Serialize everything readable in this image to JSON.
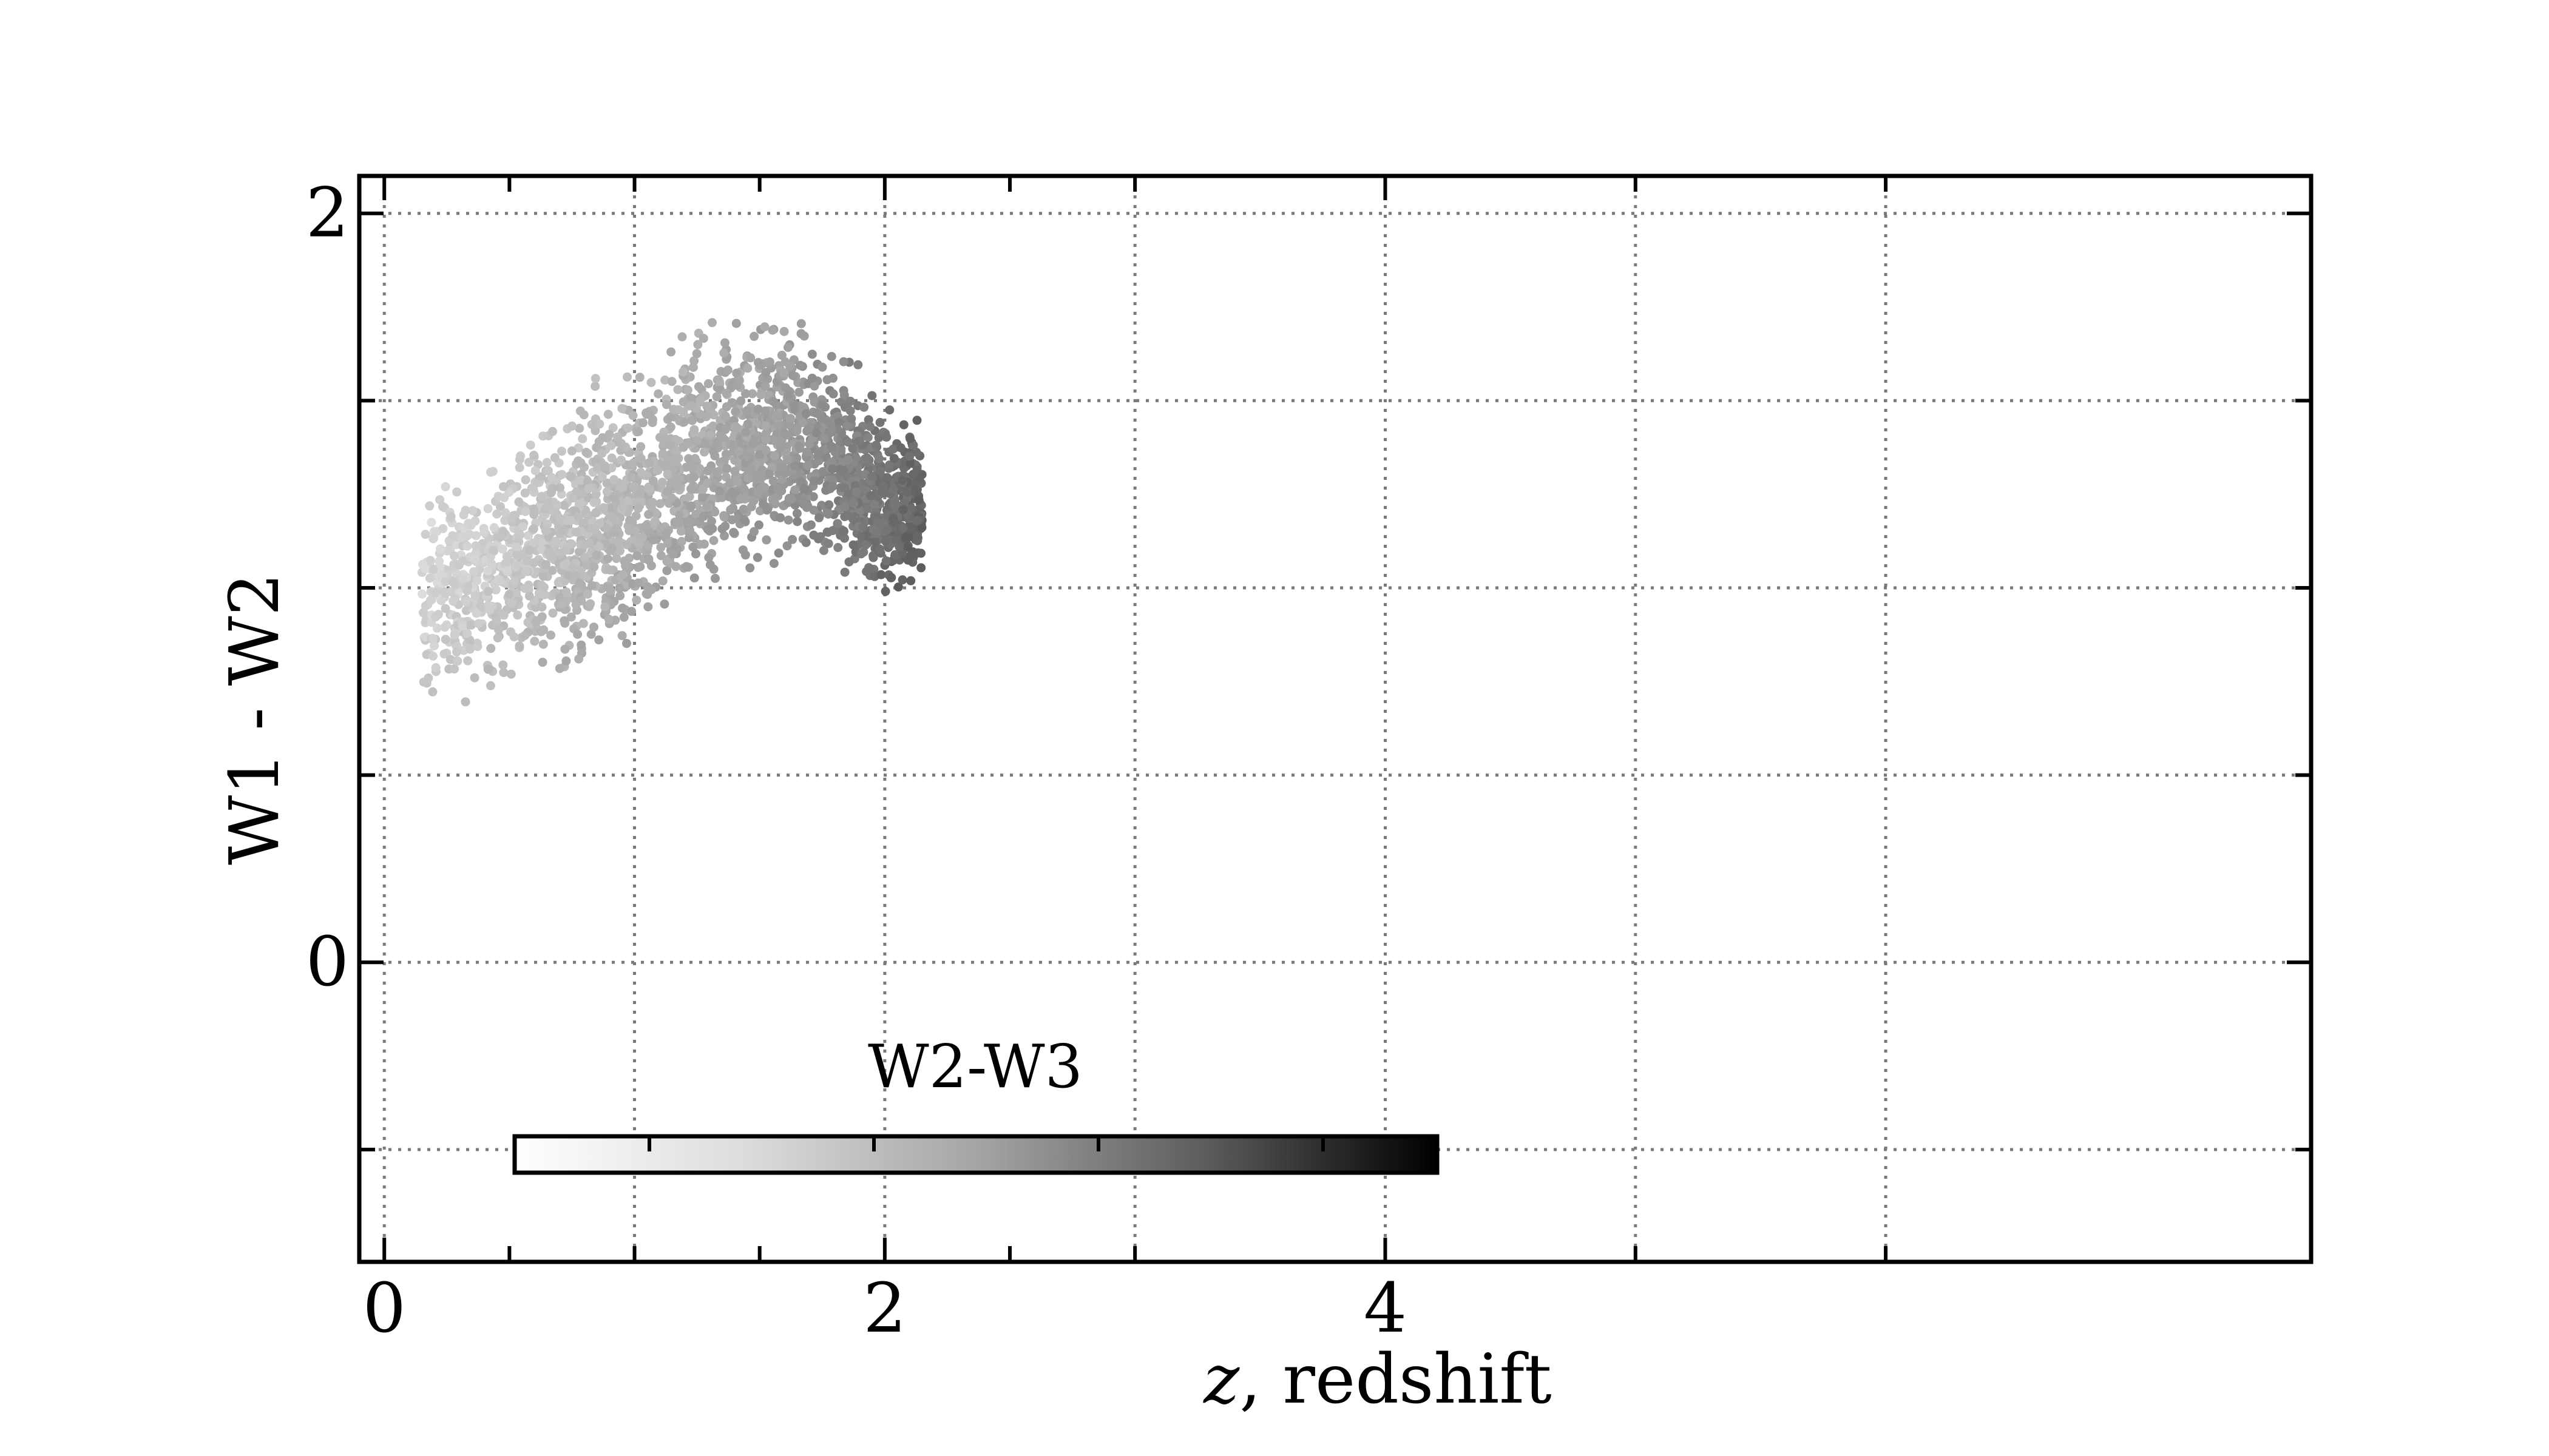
{
  "chart_data": {
    "type": "scatter",
    "title": "",
    "xlabel_italic": "z",
    "xlabel_rest": ", redshift",
    "ylabel": "W1 - W2",
    "xlim": [
      -0.1,
      7.7
    ],
    "ylim": [
      -0.8,
      2.1
    ],
    "x_major_ticks": [
      0,
      2,
      4
    ],
    "x_tick_labels": [
      "0",
      "2",
      "4"
    ],
    "x_grid": [
      0,
      1,
      2,
      3,
      4,
      5,
      6
    ],
    "x_minor_ticks": [
      0.5,
      1.5,
      2.5
    ],
    "y_major_ticks": [
      0,
      2
    ],
    "y_tick_labels": [
      "0",
      "2"
    ],
    "y_grid": [
      -0.5,
      0,
      0.5,
      1,
      1.5,
      2
    ],
    "grid": true,
    "colorbar": {
      "label": "W2-W3",
      "colormap": "Greys",
      "placement": "lower-left, horizontal"
    },
    "series": [
      {
        "marker": "hexbin",
        "ridge": [
          {
            "z": 0.25,
            "w1w2": 0.98
          },
          {
            "z": 0.5,
            "w1w2": 1.05
          },
          {
            "z": 0.75,
            "w1w2": 1.13
          },
          {
            "z": 1.0,
            "w1w2": 1.22
          },
          {
            "z": 1.25,
            "w1w2": 1.33
          },
          {
            "z": 1.5,
            "w1w2": 1.4
          },
          {
            "z": 1.75,
            "w1w2": 1.38
          },
          {
            "z": 2.0,
            "w1w2": 1.22
          }
        ],
        "z_range": [
          0.15,
          2.15
        ],
        "w1w2_range": [
          0.7,
          1.6
        ]
      }
    ]
  }
}
